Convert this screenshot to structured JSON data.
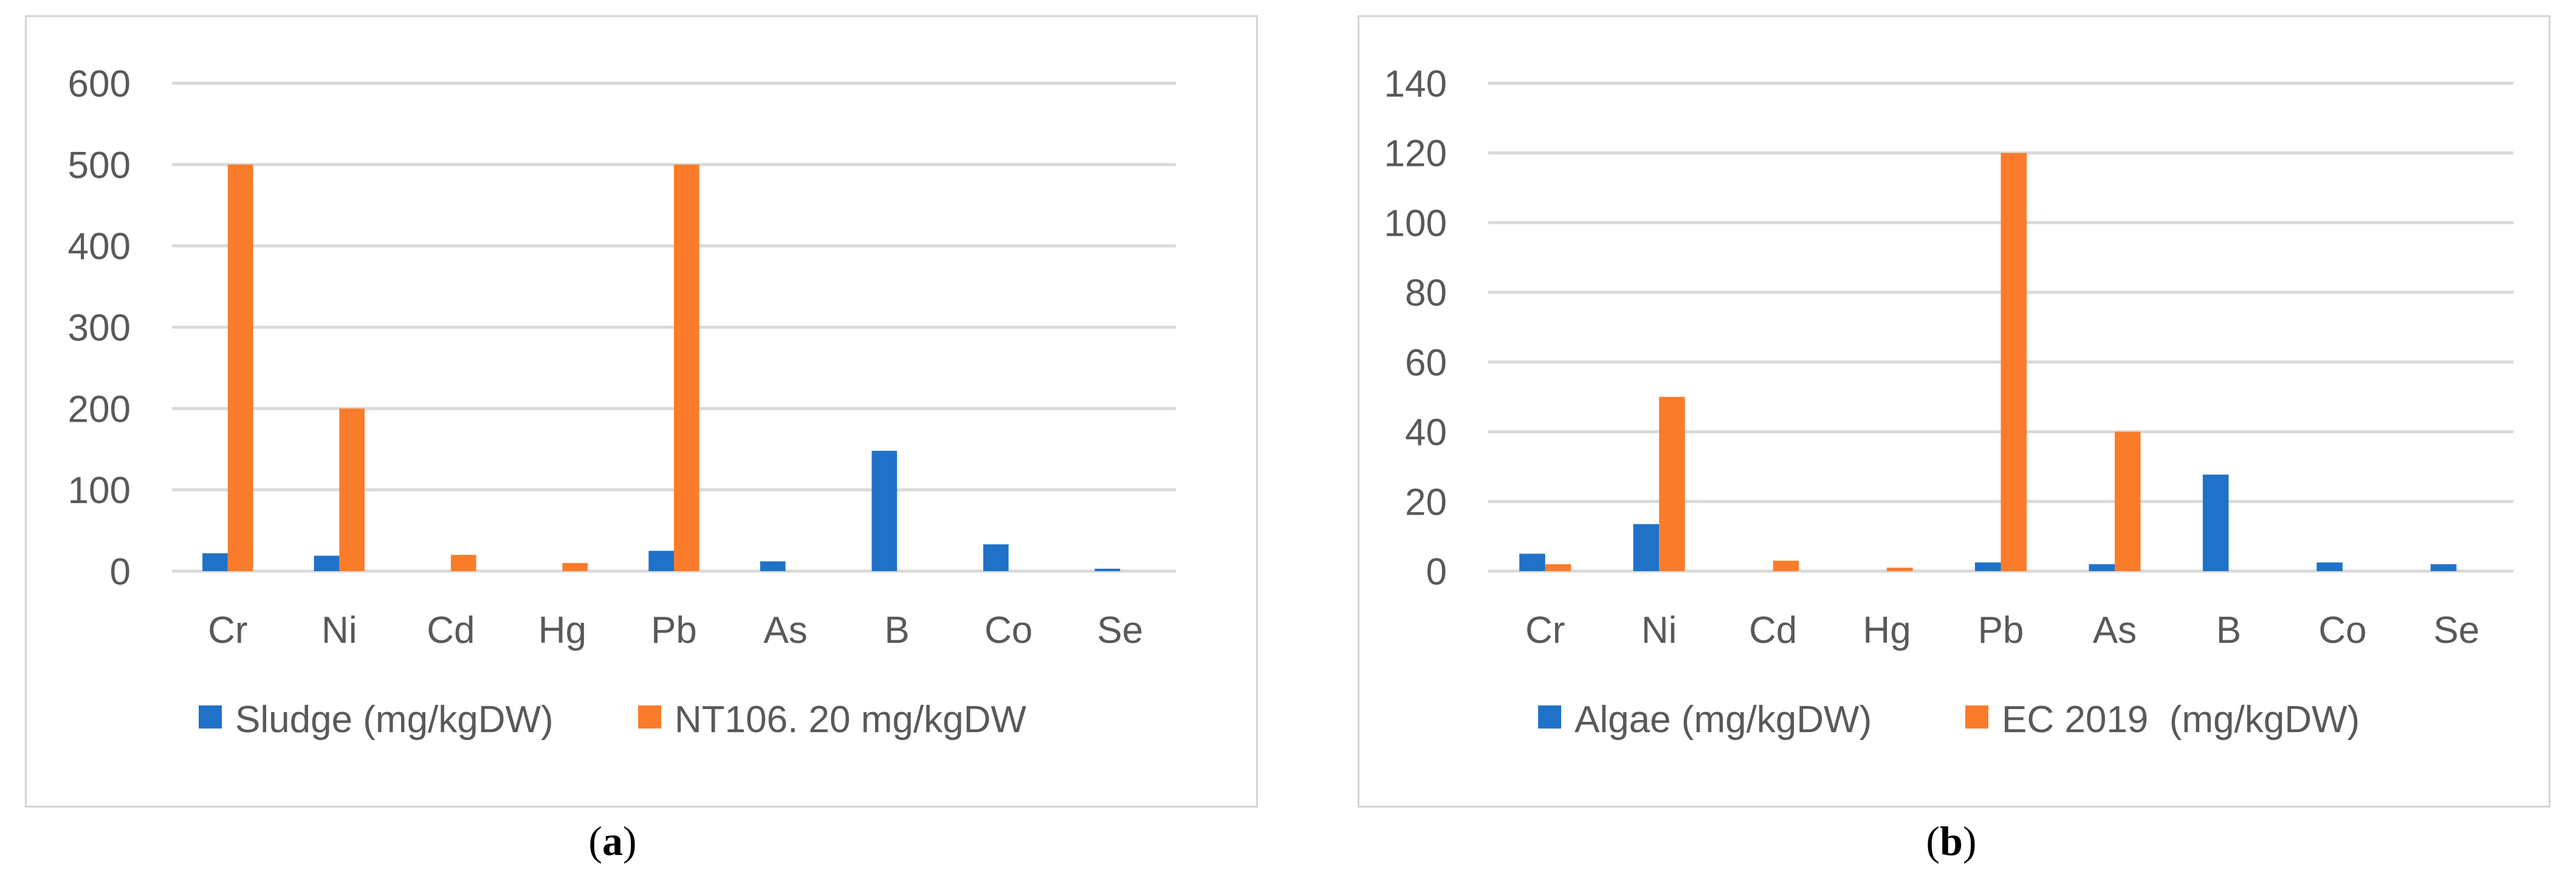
{
  "colors": {
    "series1": "#1f72c8",
    "series2": "#fa7c2a",
    "grid": "#d9d9d9",
    "text": "#595959"
  },
  "captions": [
    {
      "open": "(",
      "letter": "a",
      "close": ")"
    },
    {
      "open": "(",
      "letter": "b",
      "close": ")"
    }
  ],
  "chart_data": [
    {
      "type": "bar",
      "categories": [
        "Cr",
        "Ni",
        "Cd",
        "Hg",
        "Pb",
        "As",
        "B",
        "Co",
        "Se"
      ],
      "series": [
        {
          "name": "Sludge (mg/kgDW)",
          "values": [
            22,
            19,
            0,
            0,
            25,
            12,
            148,
            33,
            3
          ]
        },
        {
          "name": "NT106. 20 mg/kgDW",
          "values": [
            500,
            200,
            20,
            10,
            500,
            0,
            0,
            0,
            0
          ]
        }
      ],
      "y_ticks": [
        "0",
        "100",
        "200",
        "300",
        "400",
        "500",
        "600"
      ],
      "ylim": [
        0,
        600
      ],
      "grid": true,
      "legend": "bottom"
    },
    {
      "type": "bar",
      "categories": [
        "Cr",
        "Ni",
        "Cd",
        "Hg",
        "Pb",
        "As",
        "B",
        "Co",
        "Se"
      ],
      "series": [
        {
          "name": "Algae (mg/kgDW)",
          "values": [
            5,
            13.5,
            0,
            0,
            2.5,
            2,
            27.7,
            2.5,
            2
          ]
        },
        {
          "name": "EC 2019  (mg/kgDW)",
          "values": [
            2,
            50,
            3,
            1,
            120,
            40,
            0,
            0,
            0
          ]
        }
      ],
      "y_ticks": [
        "0",
        "20",
        "40",
        "60",
        "80",
        "100",
        "120",
        "140"
      ],
      "ylim": [
        0,
        140
      ],
      "grid": true,
      "legend": "bottom"
    }
  ]
}
